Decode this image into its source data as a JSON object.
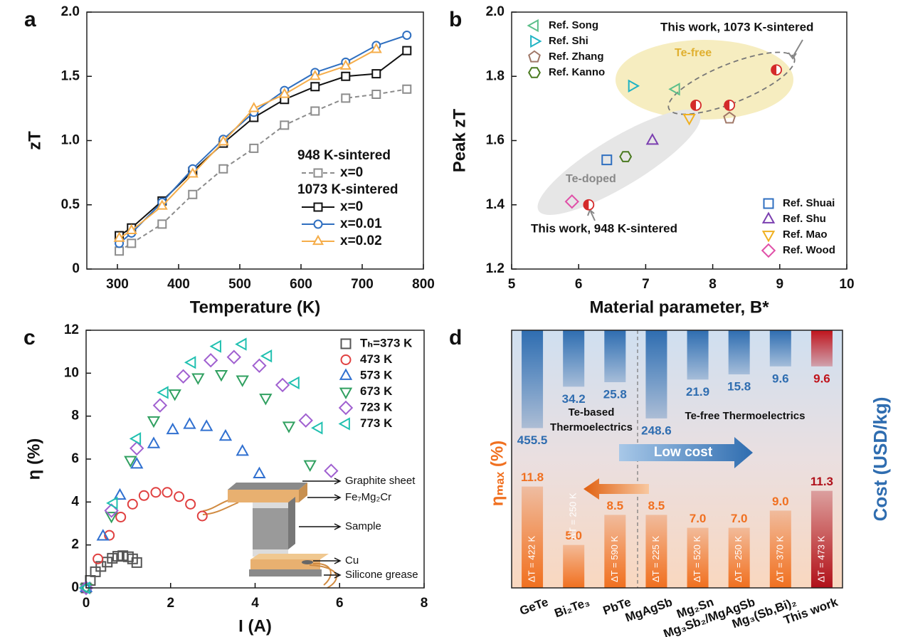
{
  "chart_data": [
    {
      "panel": "a",
      "type": "line",
      "xlabel": "Temperature (K)",
      "ylabel": "zT",
      "xlim": [
        250,
        800
      ],
      "xticks": [
        300,
        400,
        500,
        600,
        700,
        800
      ],
      "ylim": [
        0,
        2
      ],
      "yticks": [
        0,
        0.5,
        {
          "value": 1,
          "label": "1.0"
        },
        1.5,
        {
          "value": 2,
          "label": "2.0"
        }
      ],
      "x": [
        303,
        323,
        373,
        423,
        473,
        523,
        573,
        623,
        673,
        723,
        773
      ],
      "legend_groups": [
        "948 K-sintered",
        "1073 K-sintered"
      ],
      "series": [
        {
          "name": "x=0",
          "group": 0,
          "color": "#8c8c8c",
          "dash": true,
          "marker": "square",
          "values": [
            0.14,
            0.2,
            0.35,
            0.58,
            0.78,
            0.94,
            1.12,
            1.23,
            1.33,
            1.36,
            1.4
          ]
        },
        {
          "name": "x=0",
          "group": 1,
          "color": "#111111",
          "dash": false,
          "marker": "square",
          "values": [
            0.26,
            0.32,
            0.53,
            0.76,
            0.98,
            1.18,
            1.32,
            1.42,
            1.5,
            1.52,
            1.7
          ]
        },
        {
          "name": "x=0.01",
          "group": 1,
          "color": "#2f6fc0",
          "dash": false,
          "marker": "circle",
          "values": [
            0.2,
            0.28,
            0.52,
            0.78,
            1.01,
            1.22,
            1.39,
            1.53,
            1.61,
            1.74,
            1.82
          ]
        },
        {
          "name": "x=0.02",
          "group": 1,
          "color": "#f5ad4a",
          "dash": false,
          "marker": "triangle-up",
          "values": [
            0.24,
            0.3,
            0.49,
            0.74,
            0.99,
            1.25,
            1.36,
            1.5,
            1.58,
            1.71,
            null
          ]
        }
      ]
    },
    {
      "panel": "b",
      "type": "scatter",
      "xlabel": "Material parameter, B*",
      "ylabel": "Peak zT",
      "xlim": [
        5,
        10
      ],
      "xticks": [
        5,
        6,
        7,
        8,
        9,
        10
      ],
      "ylim": [
        1.2,
        2
      ],
      "yticks": [
        1.2,
        1.4,
        1.6,
        1.8,
        {
          "value": 2,
          "label": "2.0"
        }
      ],
      "series": [
        {
          "name": "Ref. Song",
          "color": "#5cbf8a",
          "marker": "triangle-left",
          "legend_corner": "upper left",
          "x": [
            7.45
          ],
          "y": [
            1.76
          ]
        },
        {
          "name": "Ref. Shi",
          "color": "#1fb3c4",
          "marker": "triangle-right",
          "legend_corner": "upper left",
          "x": [
            6.8
          ],
          "y": [
            1.77
          ]
        },
        {
          "name": "Ref. Zhang",
          "color": "#a07868",
          "marker": "pentagon",
          "legend_corner": "upper left",
          "x": [
            8.25
          ],
          "y": [
            1.67
          ]
        },
        {
          "name": "Ref. Kanno",
          "color": "#4a7a20",
          "marker": "hexagon",
          "legend_corner": "upper left",
          "x": [
            6.7
          ],
          "y": [
            1.55
          ]
        },
        {
          "name": "Ref. Shuai",
          "color": "#2f6fc0",
          "marker": "square",
          "legend_corner": "lower right",
          "x": [
            6.42
          ],
          "y": [
            1.54
          ]
        },
        {
          "name": "Ref. Shu",
          "color": "#7b3fb0",
          "marker": "triangle-up",
          "legend_corner": "lower right",
          "x": [
            7.1
          ],
          "y": [
            1.6
          ]
        },
        {
          "name": "Ref. Mao",
          "color": "#f0b020",
          "marker": "triangle-down",
          "legend_corner": "lower right",
          "x": [
            7.65
          ],
          "y": [
            1.67
          ]
        },
        {
          "name": "Ref. Wood",
          "color": "#e050a8",
          "marker": "diamond",
          "legend_corner": "lower right",
          "x": [
            5.9
          ],
          "y": [
            1.41
          ]
        }
      ],
      "this_work": {
        "color": "#d42a2a",
        "x": [
          6.15,
          7.75,
          8.25,
          8.95
        ],
        "y": [
          1.4,
          1.71,
          1.71,
          1.82
        ]
      },
      "annotations": [
        "Te-free",
        "Te-doped",
        "This work, 1073 K-sintered",
        "This work, 948 K-sintered"
      ]
    },
    {
      "panel": "c",
      "type": "scatter",
      "xlabel": "I (A)",
      "ylabel": "η (%)",
      "legend": "upper right",
      "xlim": [
        0,
        8
      ],
      "xticks": [
        0,
        2,
        4,
        6,
        8
      ],
      "ylim": [
        0,
        12
      ],
      "yticks": [
        0,
        2,
        4,
        6,
        8,
        10,
        12
      ],
      "series": [
        {
          "name": "Tₕ=373 K",
          "color": "#555555",
          "marker": "square",
          "x": [
            0,
            0.1,
            0.22,
            0.35,
            0.5,
            0.62,
            0.75,
            0.87,
            1.0,
            1.1,
            1.2
          ],
          "y": [
            0,
            0.35,
            0.75,
            1.0,
            1.2,
            1.38,
            1.47,
            1.5,
            1.45,
            1.35,
            1.18
          ]
        },
        {
          "name": "473 K",
          "color": "#e04040",
          "marker": "circle",
          "x": [
            0,
            0.28,
            0.55,
            0.82,
            1.1,
            1.37,
            1.65,
            1.92,
            2.2,
            2.47,
            2.75
          ],
          "y": [
            0,
            1.35,
            2.45,
            3.3,
            3.9,
            4.3,
            4.45,
            4.45,
            4.25,
            3.9,
            3.35
          ]
        },
        {
          "name": "573 K",
          "color": "#3070d0",
          "marker": "triangle-up",
          "x": [
            0,
            0.4,
            0.8,
            1.2,
            1.6,
            2.05,
            2.45,
            2.85,
            3.3,
            3.7,
            4.1
          ],
          "y": [
            0,
            2.4,
            4.3,
            5.75,
            6.7,
            7.35,
            7.6,
            7.5,
            7.05,
            6.35,
            5.3
          ]
        },
        {
          "name": "673 K",
          "color": "#30a060",
          "marker": "triangle-down",
          "x": [
            0,
            0.6,
            1.05,
            1.6,
            2.1,
            2.65,
            3.2,
            3.7,
            4.25,
            4.8,
            5.3
          ],
          "y": [
            0,
            3.35,
            5.95,
            7.8,
            9.05,
            9.8,
            9.95,
            9.7,
            8.85,
            7.55,
            5.75
          ]
        },
        {
          "name": "723 K",
          "color": "#a060d0",
          "marker": "diamond",
          "x": [
            0,
            0.6,
            1.2,
            1.75,
            2.3,
            2.95,
            3.5,
            4.1,
            4.65,
            5.2,
            5.8
          ],
          "y": [
            0,
            3.6,
            6.5,
            8.5,
            9.85,
            10.6,
            10.75,
            10.35,
            9.45,
            7.8,
            5.45
          ]
        },
        {
          "name": "773 K",
          "color": "#20c0b0",
          "marker": "triangle-left",
          "x": [
            0,
            0.65,
            1.2,
            1.85,
            2.5,
            3.1,
            3.7,
            4.3,
            4.95,
            5.5
          ],
          "y": [
            0,
            3.95,
            6.95,
            9.1,
            10.5,
            11.25,
            11.35,
            10.8,
            9.55,
            7.45
          ]
        }
      ],
      "inset_labels": [
        "Graphite sheet",
        "Fe₇Mg₂Cr",
        "Sample",
        "Cu",
        "Silicone grease"
      ]
    },
    {
      "panel": "d",
      "type": "bar",
      "ylabel": "ηₘₐₓ (%)",
      "y2label": "Cost (USD/kg)",
      "categories": [
        "GeTe",
        "Bi₂Te₃",
        "PbTe",
        "MgAgSb",
        "Mg₂Sn",
        "Mg₃Sb₂/MgAgSb",
        "Mg₃(Sb,Bi)₂",
        "This work"
      ],
      "ylim": [
        0,
        30
      ],
      "y2lim": [
        1,
        10000000
      ],
      "y2log": true,
      "y2inverted": true,
      "series": [
        {
          "axis": "y2",
          "colors": [
            "#2f6db0",
            "#2f6db0",
            "#2f6db0",
            "#2f6db0",
            "#2f6db0",
            "#2f6db0",
            "#2f6db0",
            "#c0141c"
          ],
          "values": [
            455.5,
            34.2,
            25.8,
            248.6,
            21.9,
            15.8,
            9.6,
            9.6
          ]
        },
        {
          "colors": [
            "#f07020",
            "#f07020",
            "#f07020",
            "#f07020",
            "#f07020",
            "#f07020",
            "#f07020",
            "#b0101a"
          ],
          "values": [
            11.8,
            5.0,
            8.5,
            8.5,
            7.0,
            7.0,
            9.0,
            11.3
          ],
          "value_labels": [
            "11.8",
            "5.0",
            "8.5",
            "8.5",
            "7.0",
            "7.0",
            "9.0",
            "11.3"
          ],
          "delta_t_labels": [
            "ΔT = 422 K",
            "ΔT = 250 K",
            "ΔT = 590 K",
            "ΔT = 225 K",
            "ΔT = 520 K",
            "ΔT = 250 K",
            "ΔT = 370 K",
            "ΔT = 473 K"
          ]
        }
      ],
      "annotations": [
        "Te-based",
        "Thermoelectrics",
        "Te-free Thermoelectrics",
        "Low cost"
      ]
    }
  ]
}
